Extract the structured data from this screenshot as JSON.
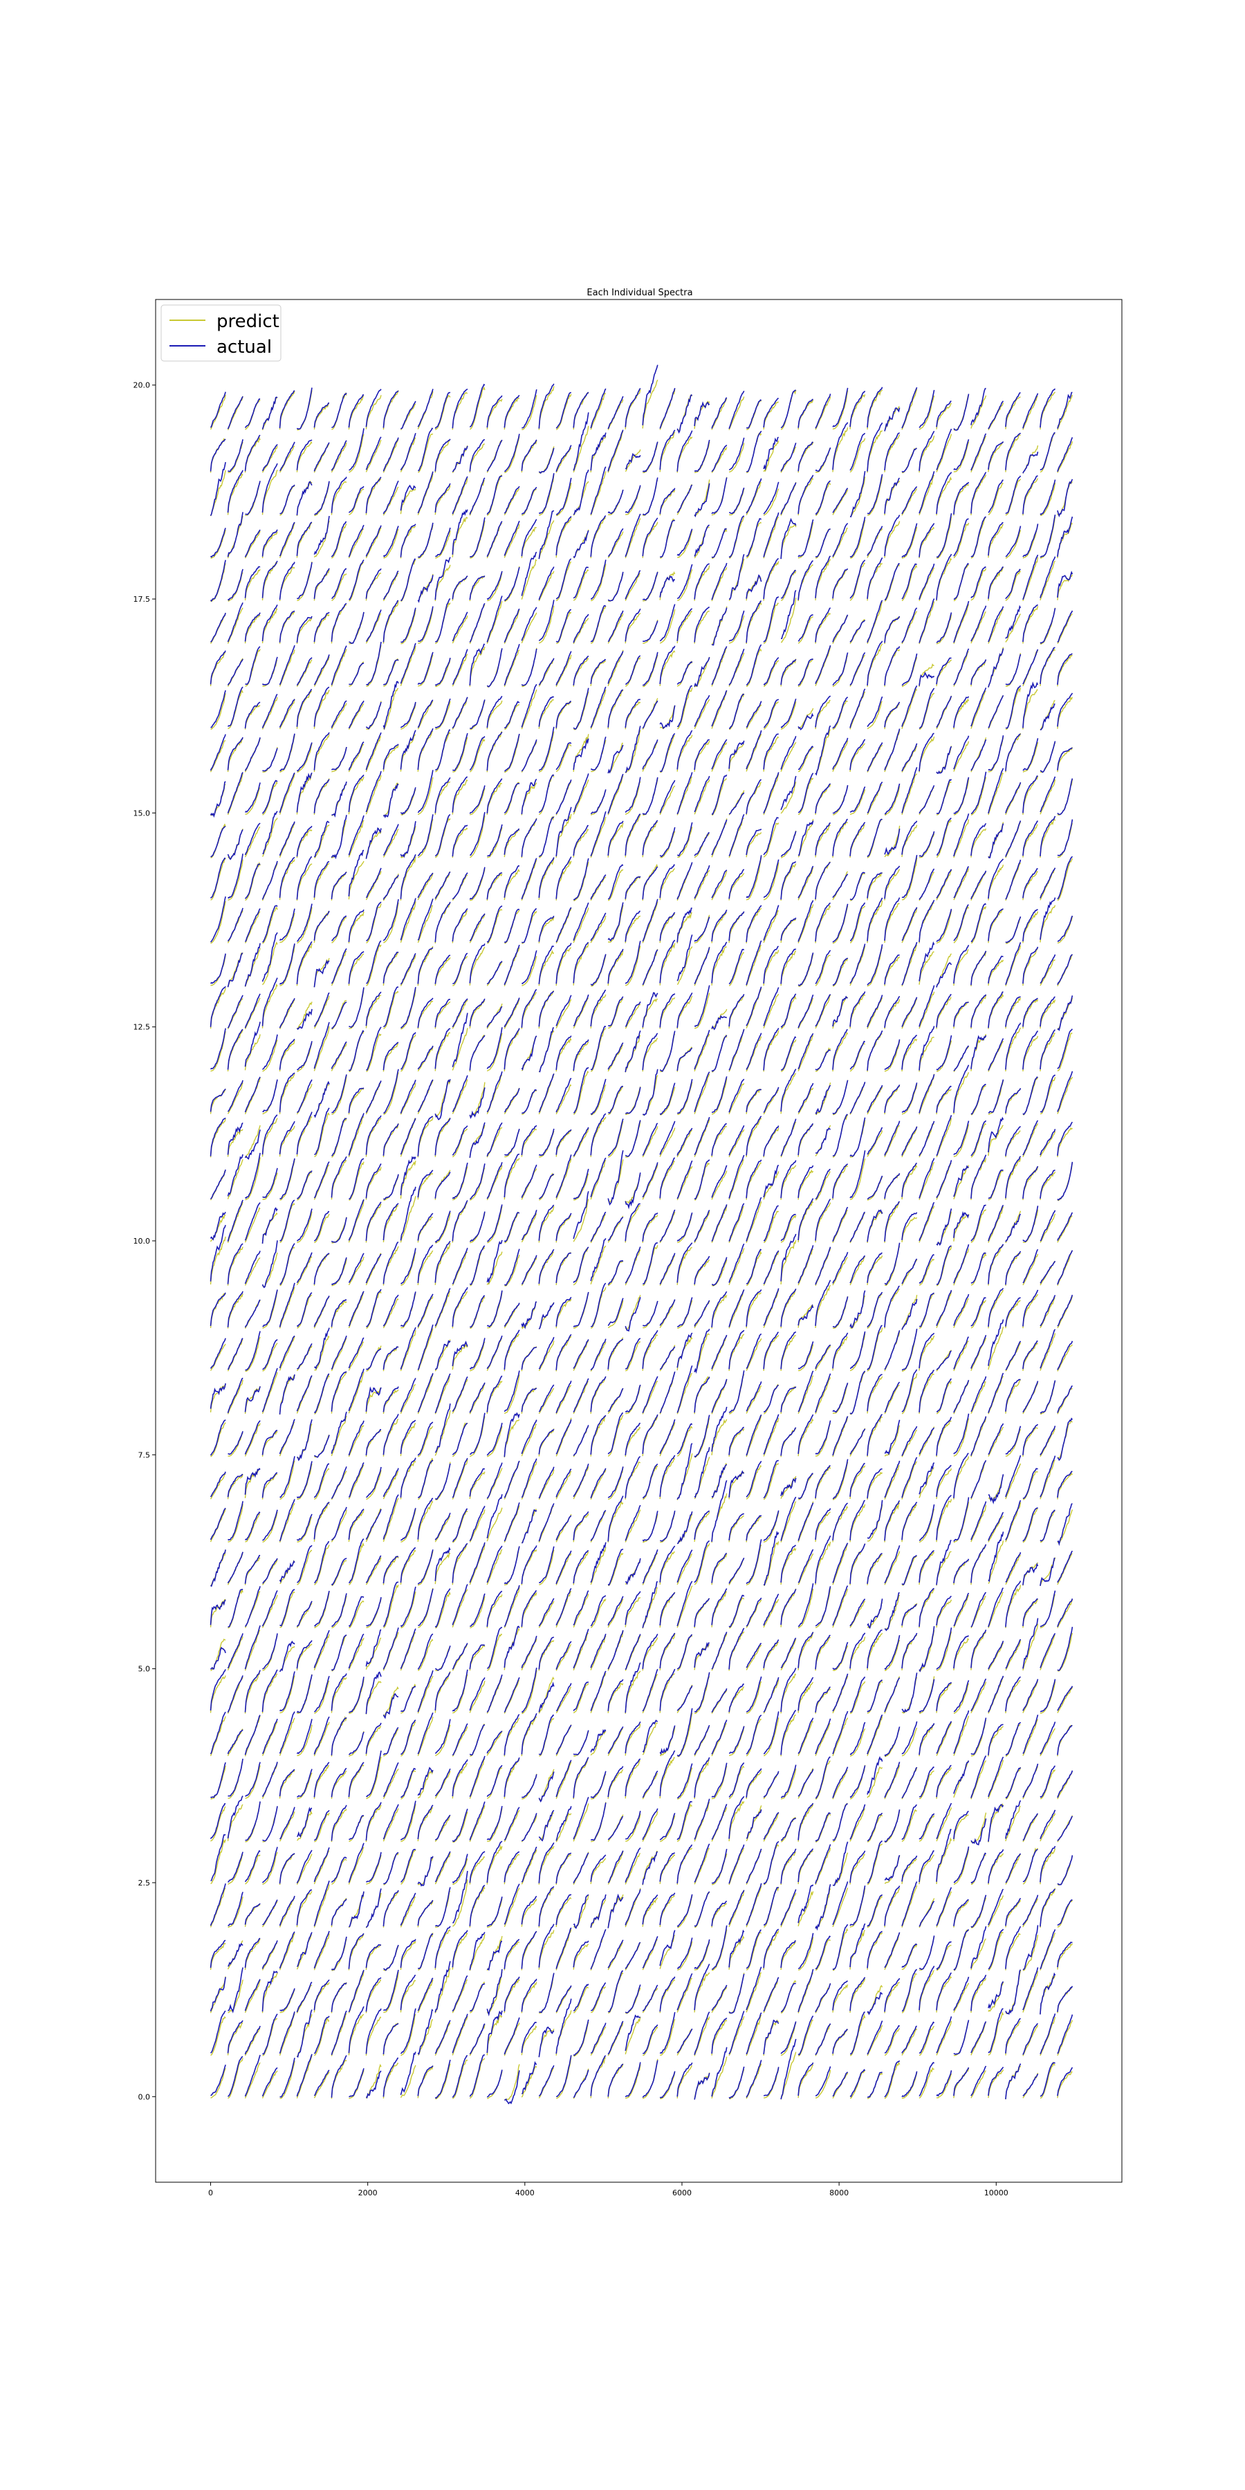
{
  "chart_data": {
    "type": "line",
    "title": "Each Individual Spectra",
    "xlabel": "",
    "ylabel": "",
    "xlim": [
      -700,
      11600
    ],
    "ylim": [
      -1.0,
      21.0
    ],
    "xticks": [
      0,
      2000,
      4000,
      6000,
      8000,
      10000
    ],
    "yticks": [
      0.0,
      2.5,
      5.0,
      7.5,
      10.0,
      12.5,
      15.0,
      17.5,
      20.0
    ],
    "xtick_labels": [
      "0",
      "2000",
      "4000",
      "6000",
      "8000",
      "10000"
    ],
    "ytick_labels": [
      "0.0",
      "2.5",
      "5.0",
      "7.5",
      "10.0",
      "12.5",
      "15.0",
      "17.5",
      "20.0"
    ],
    "grid": false,
    "legend": {
      "placement": "top-left",
      "entries": [
        "predict",
        "actual"
      ]
    },
    "series": [
      {
        "name": "predict",
        "color": "#c8c832"
      },
      {
        "name": "actual",
        "color": "#1a1ab4"
      }
    ],
    "layout_info": {
      "rows": 40,
      "columns": 50,
      "row_spacing": 0.5,
      "column_spacing": 220,
      "segment_width": 190,
      "row_baseline_start": 0.0,
      "description_note": "grid of small normalized spectra, one per cell; each rises roughly 0.4 in y across its segment"
    }
  }
}
